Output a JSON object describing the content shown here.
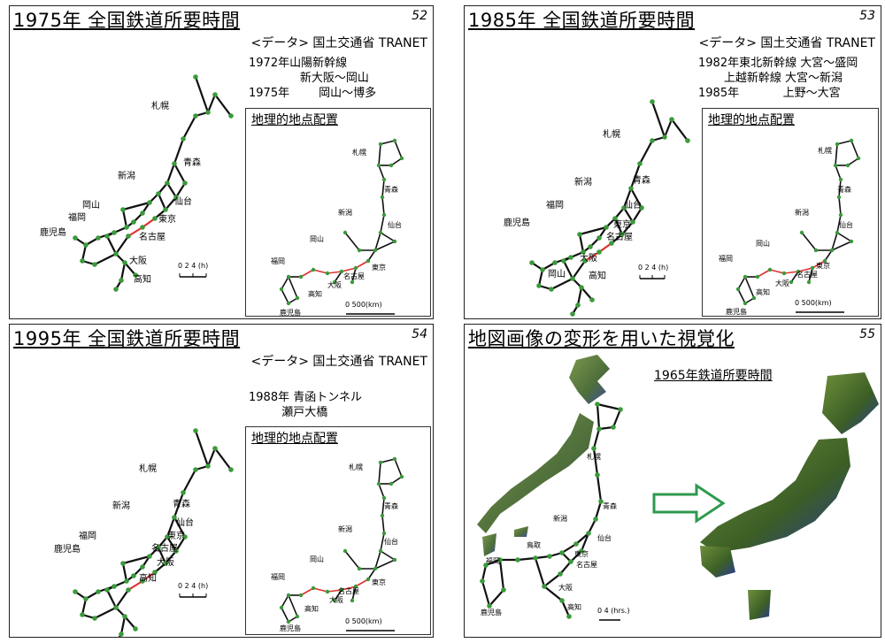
{
  "slides": [
    {
      "title": "1975年 全国鉄道所要時間",
      "page": "52",
      "source": "<データ> 国土交通省 TRANET",
      "note": "1972年山陽新幹線\n              新大阪～岡山\n1975年        岡山～博多",
      "inset_title": "地理的地点配置",
      "scale_time": "0  2  4 (h)",
      "scale_km": "0                500(km)"
    },
    {
      "title": "1985年 全国鉄道所要時間",
      "page": "53",
      "source": "<データ> 国土交通省 TRANET",
      "note": "1982年東北新幹線 大宮～盛岡\n       上越新幹線 大宮～新潟\n1985年            上野～大宮",
      "inset_title": "地理的地点配置",
      "scale_time": "0  2  4 (h)",
      "scale_km": "0                500(km)"
    },
    {
      "title": "1995年 全国鉄道所要時間",
      "page": "54",
      "source": "<データ> 国土交通省 TRANET",
      "note": "1988年 青函トンネル\n         瀬戸大橋",
      "inset_title": "地理的地点配置",
      "scale_time": "0  2  4 (h)",
      "scale_km": "0                500(km)"
    },
    {
      "title": "地図画像の変形を用いた視覚化",
      "page": "55",
      "subtitle": "1965年鉄道所要時間",
      "scale_time": "0   4 (hrs.)"
    }
  ],
  "cities": {
    "sapporo": "札幌",
    "aomori": "青森",
    "niigata": "新潟",
    "sendai": "仙台",
    "okayama": "岡山",
    "fukuoka": "福岡",
    "tokyo": "東京",
    "kagoshima": "鹿児島",
    "nagoya": "名古屋",
    "osaka": "大阪",
    "kochi": "高知",
    "tottori": "鳥取"
  },
  "colors": {
    "network": "#111111",
    "node": "#3a9a3a",
    "shinkansen": "#e03030",
    "arrow": "#2e9a4e",
    "terrain": "#3f6b2a",
    "sea_shade": "#2a3a9a"
  }
}
